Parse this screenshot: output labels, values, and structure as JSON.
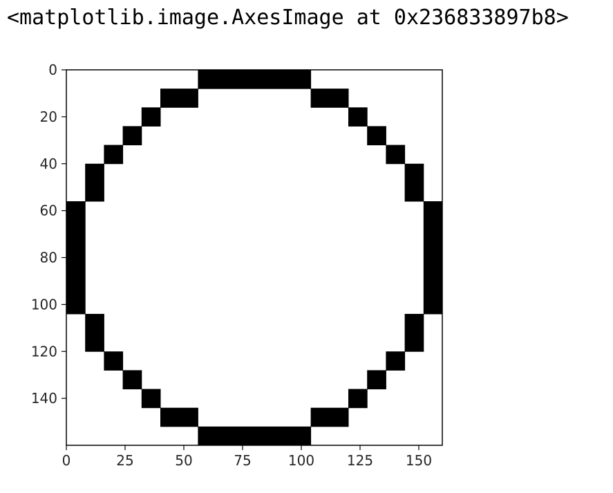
{
  "output_repr": "<matplotlib.image.AxesImage at 0x236833897b8>",
  "colors": {
    "foreground": "#000000",
    "background": "#ffffff",
    "tick_text": "#262626"
  },
  "chart_data": {
    "type": "heatmap",
    "colormap": "gray",
    "origin": "upper",
    "xlim": [
      0,
      160
    ],
    "ylim": [
      160,
      0
    ],
    "grid": false,
    "x_ticks": [
      0,
      25,
      50,
      75,
      100,
      125,
      150
    ],
    "y_ticks": [
      0,
      20,
      40,
      60,
      80,
      100,
      120,
      140
    ],
    "x_tick_labels": [
      "0",
      "25",
      "50",
      "75",
      "100",
      "125",
      "150"
    ],
    "y_tick_labels": [
      "0",
      "20",
      "40",
      "60",
      "80",
      "100",
      "120",
      "140"
    ],
    "black_regions": [
      {
        "x": [
          56,
          104
        ],
        "y": [
          0,
          8
        ]
      },
      {
        "x": [
          40,
          56
        ],
        "y": [
          8,
          16
        ]
      },
      {
        "x": [
          104,
          120
        ],
        "y": [
          8,
          16
        ]
      },
      {
        "x": [
          32,
          40
        ],
        "y": [
          16,
          24
        ]
      },
      {
        "x": [
          120,
          128
        ],
        "y": [
          16,
          24
        ]
      },
      {
        "x": [
          24,
          32
        ],
        "y": [
          24,
          32
        ]
      },
      {
        "x": [
          128,
          136
        ],
        "y": [
          24,
          32
        ]
      },
      {
        "x": [
          16,
          24
        ],
        "y": [
          32,
          40
        ]
      },
      {
        "x": [
          136,
          144
        ],
        "y": [
          32,
          40
        ]
      },
      {
        "x": [
          8,
          16
        ],
        "y": [
          40,
          56
        ]
      },
      {
        "x": [
          144,
          152
        ],
        "y": [
          40,
          56
        ]
      },
      {
        "x": [
          0,
          8
        ],
        "y": [
          56,
          104
        ]
      },
      {
        "x": [
          152,
          160
        ],
        "y": [
          56,
          104
        ]
      },
      {
        "x": [
          8,
          16
        ],
        "y": [
          104,
          120
        ]
      },
      {
        "x": [
          144,
          152
        ],
        "y": [
          104,
          120
        ]
      },
      {
        "x": [
          16,
          24
        ],
        "y": [
          120,
          128
        ]
      },
      {
        "x": [
          136,
          144
        ],
        "y": [
          120,
          128
        ]
      },
      {
        "x": [
          24,
          32
        ],
        "y": [
          128,
          136
        ]
      },
      {
        "x": [
          128,
          136
        ],
        "y": [
          128,
          136
        ]
      },
      {
        "x": [
          32,
          40
        ],
        "y": [
          136,
          144
        ]
      },
      {
        "x": [
          120,
          128
        ],
        "y": [
          136,
          144
        ]
      },
      {
        "x": [
          40,
          56
        ],
        "y": [
          144,
          152
        ]
      },
      {
        "x": [
          104,
          120
        ],
        "y": [
          144,
          152
        ]
      },
      {
        "x": [
          56,
          104
        ],
        "y": [
          152,
          160
        ]
      }
    ]
  }
}
